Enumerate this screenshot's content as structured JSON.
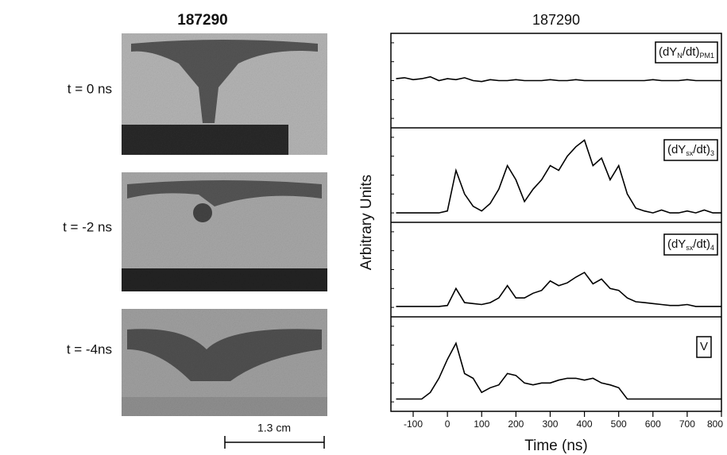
{
  "left": {
    "title": "187290",
    "images": [
      {
        "label": "t = 0 ns"
      },
      {
        "label": "t = -2 ns"
      },
      {
        "label": "t = -4ns"
      }
    ],
    "scale_bar": "1.3 cm"
  },
  "chart_data": {
    "type": "line",
    "title": "187290",
    "x_label": "Time (ns)",
    "y_label": "Arbitrary Units",
    "xlim": [
      -165,
      800
    ],
    "xticks": [
      -100,
      0,
      100,
      200,
      300,
      400,
      500,
      600,
      700,
      800
    ],
    "ylim": [
      0,
      1
    ],
    "color": "#000000",
    "x": [
      -150,
      -125,
      -100,
      -75,
      -50,
      -25,
      0,
      25,
      50,
      75,
      100,
      125,
      150,
      175,
      200,
      225,
      250,
      275,
      300,
      325,
      350,
      375,
      400,
      425,
      450,
      475,
      500,
      525,
      550,
      575,
      600,
      625,
      650,
      675,
      700,
      725,
      750,
      775,
      800
    ],
    "series": [
      {
        "name": [
          "(dY",
          "N",
          "/dt)",
          "PM1"
        ],
        "values": [
          0.52,
          0.53,
          0.51,
          0.52,
          0.54,
          0.5,
          0.52,
          0.51,
          0.53,
          0.5,
          0.49,
          0.51,
          0.5,
          0.5,
          0.51,
          0.5,
          0.5,
          0.5,
          0.51,
          0.5,
          0.5,
          0.51,
          0.5,
          0.5,
          0.5,
          0.5,
          0.5,
          0.5,
          0.5,
          0.5,
          0.51,
          0.5,
          0.5,
          0.5,
          0.51,
          0.5,
          0.5,
          0.5,
          0.5
        ]
      },
      {
        "name": [
          "(dY",
          "sx",
          "/dt)",
          "3"
        ],
        "values": [
          0.1,
          0.1,
          0.1,
          0.1,
          0.1,
          0.1,
          0.12,
          0.55,
          0.3,
          0.17,
          0.12,
          0.2,
          0.35,
          0.6,
          0.45,
          0.22,
          0.35,
          0.45,
          0.6,
          0.55,
          0.7,
          0.8,
          0.87,
          0.6,
          0.68,
          0.45,
          0.6,
          0.3,
          0.15,
          0.12,
          0.1,
          0.13,
          0.1,
          0.1,
          0.12,
          0.1,
          0.13,
          0.1,
          0.1
        ]
      },
      {
        "name": [
          "(dY",
          "sx",
          "/dt)",
          "4"
        ],
        "values": [
          0.11,
          0.11,
          0.11,
          0.11,
          0.11,
          0.11,
          0.12,
          0.3,
          0.15,
          0.14,
          0.13,
          0.15,
          0.2,
          0.33,
          0.2,
          0.2,
          0.25,
          0.28,
          0.38,
          0.33,
          0.36,
          0.42,
          0.47,
          0.35,
          0.4,
          0.3,
          0.28,
          0.2,
          0.16,
          0.15,
          0.14,
          0.13,
          0.12,
          0.12,
          0.13,
          0.11,
          0.11,
          0.11,
          0.11
        ]
      },
      {
        "name": [
          "V"
        ],
        "values": [
          0.13,
          0.13,
          0.13,
          0.13,
          0.2,
          0.35,
          0.55,
          0.72,
          0.4,
          0.35,
          0.2,
          0.25,
          0.28,
          0.4,
          0.38,
          0.3,
          0.28,
          0.3,
          0.3,
          0.33,
          0.35,
          0.35,
          0.33,
          0.35,
          0.3,
          0.28,
          0.25,
          0.13,
          0.13,
          0.13,
          0.13,
          0.13,
          0.13,
          0.13,
          0.13,
          0.13,
          0.13,
          0.13,
          0.13
        ]
      }
    ]
  }
}
